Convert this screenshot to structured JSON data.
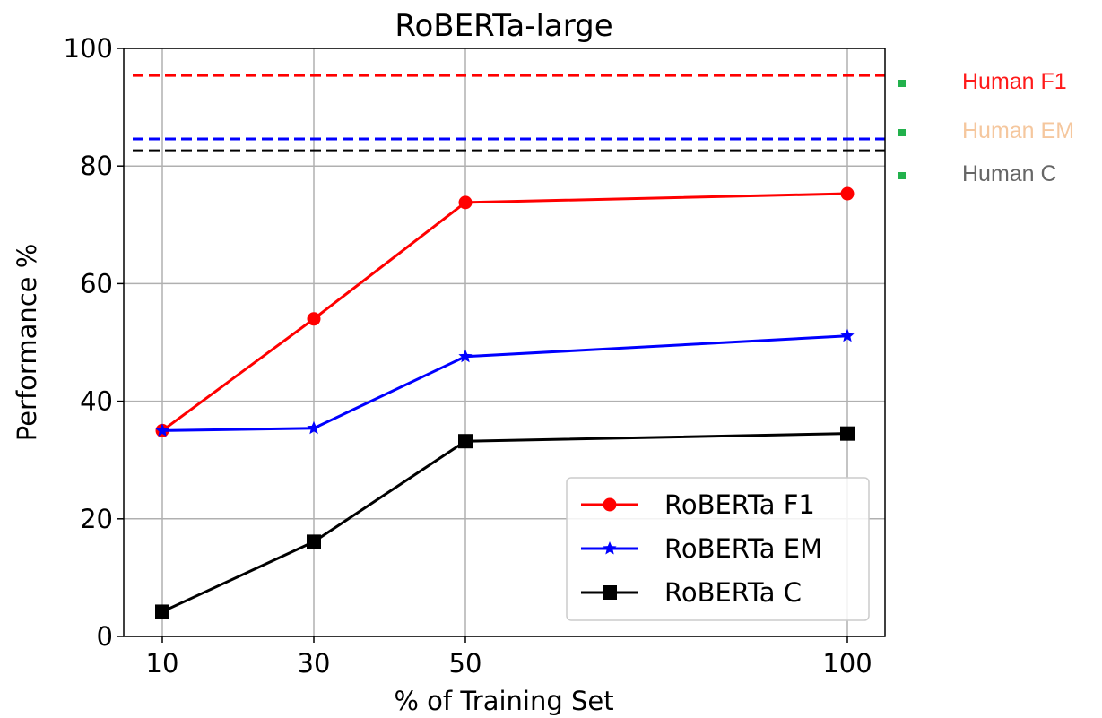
{
  "chart_data": {
    "type": "line",
    "title": "RoBERTa-large",
    "xlabel": "% of Training Set",
    "ylabel": "Performance %",
    "ylim": [
      0,
      100
    ],
    "x_ticks": [
      10,
      30,
      50,
      100
    ],
    "y_ticks": [
      0,
      20,
      40,
      60,
      80,
      100
    ],
    "x": [
      10,
      30,
      50,
      100
    ],
    "grid": true,
    "legend_position": "lower-right",
    "series": [
      {
        "name": "RoBERTa F1",
        "values": [
          35.0,
          54.0,
          73.8,
          75.3
        ],
        "color": "#ff0000",
        "marker": "circle"
      },
      {
        "name": "RoBERTa EM",
        "values": [
          35.0,
          35.4,
          47.6,
          51.1
        ],
        "color": "#0000ff",
        "marker": "star"
      },
      {
        "name": "RoBERTa C",
        "values": [
          4.2,
          16.1,
          33.2,
          34.5
        ],
        "color": "#000000",
        "marker": "square"
      }
    ],
    "reference_lines": [
      {
        "name": "Human F1",
        "value": 95.4,
        "color": "#ff0000",
        "label_color": "#ff1a1a"
      },
      {
        "name": "Human EM",
        "value": 84.6,
        "color": "#0000ff",
        "label_color": "#f5c79e"
      },
      {
        "name": "Human C",
        "value": 82.6,
        "color": "#000000",
        "label_color": "#666666"
      }
    ],
    "marker_color": "#22b14c"
  }
}
